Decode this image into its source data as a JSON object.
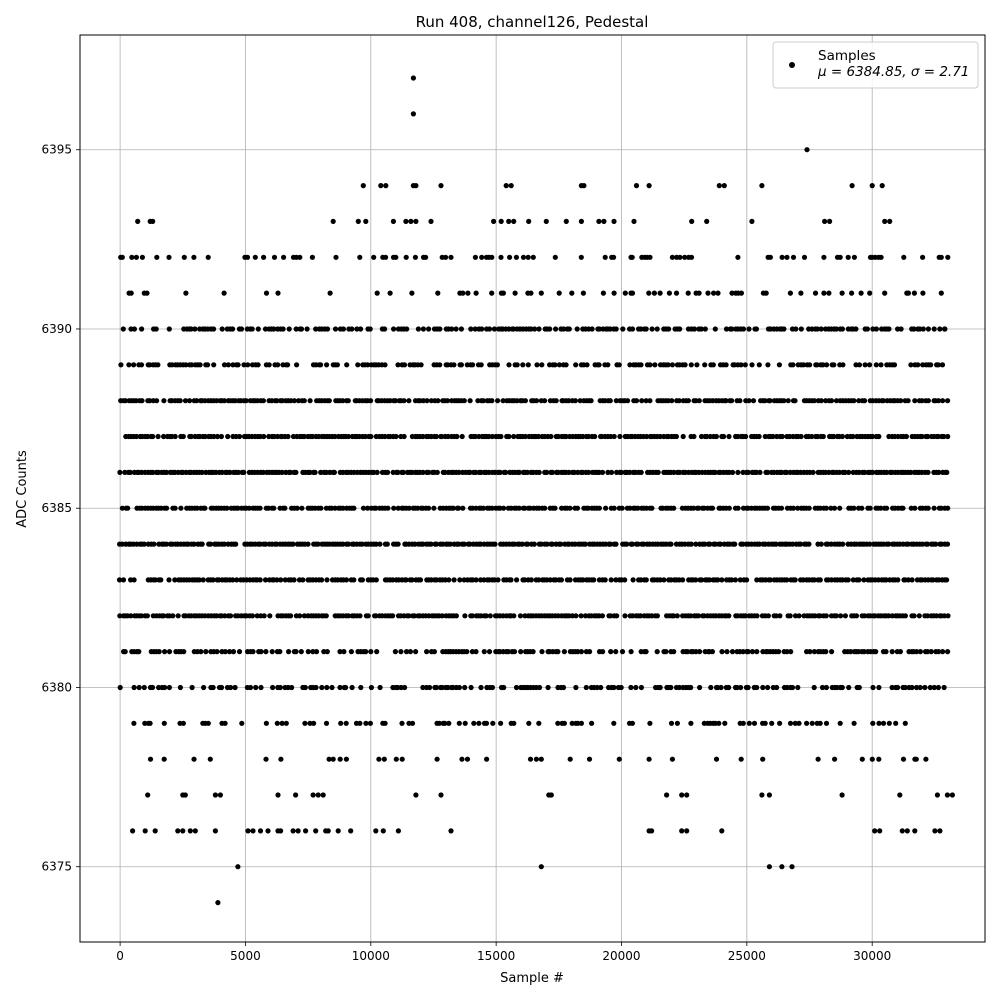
{
  "chart_data": {
    "type": "scatter",
    "title": "Run 408, channel126, Pedestal",
    "xlabel": "Sample #",
    "ylabel": "ADC Counts",
    "xlim": [
      -1600,
      34500
    ],
    "ylim": [
      6372.9,
      6398.2
    ],
    "xticks": [
      0,
      5000,
      10000,
      15000,
      20000,
      25000,
      30000
    ],
    "yticks": [
      6375,
      6380,
      6385,
      6390,
      6395
    ],
    "grid": true,
    "legend_position": "top-right",
    "marker_color": "#000000",
    "n_samples_end": 33000,
    "series": [
      {
        "name": "Samples",
        "legend_line2": "μ = 6384.85, σ = 2.71",
        "mean": 6384.85,
        "sigma": 2.71
      }
    ],
    "level_density": {
      "6379": 0.35,
      "6380": 0.55,
      "6381": 0.6,
      "6382": 0.85,
      "6383": 0.8,
      "6384": 0.95,
      "6385": 0.8,
      "6386": 0.95,
      "6387": 0.85,
      "6388": 0.8,
      "6389": 0.6,
      "6390": 0.6,
      "6391": 0.2,
      "6392": 0.28,
      "6378": 0.12
    },
    "sparse_points": [
      [
        3900,
        6374
      ],
      [
        4700,
        6375
      ],
      [
        16800,
        6375
      ],
      [
        25900,
        6375
      ],
      [
        26400,
        6375
      ],
      [
        26800,
        6375
      ],
      [
        500,
        6376
      ],
      [
        1000,
        6376
      ],
      [
        1400,
        6376
      ],
      [
        2300,
        6376
      ],
      [
        2500,
        6376
      ],
      [
        2800,
        6376
      ],
      [
        3000,
        6376
      ],
      [
        3800,
        6376
      ],
      [
        5100,
        6376
      ],
      [
        5300,
        6376
      ],
      [
        5600,
        6376
      ],
      [
        5900,
        6376
      ],
      [
        6300,
        6376
      ],
      [
        6400,
        6376
      ],
      [
        6900,
        6376
      ],
      [
        7100,
        6376
      ],
      [
        7400,
        6376
      ],
      [
        7800,
        6376
      ],
      [
        8200,
        6376
      ],
      [
        8300,
        6376
      ],
      [
        8700,
        6376
      ],
      [
        9200,
        6376
      ],
      [
        10200,
        6376
      ],
      [
        10500,
        6376
      ],
      [
        11100,
        6376
      ],
      [
        13200,
        6376
      ],
      [
        21100,
        6376
      ],
      [
        21200,
        6376
      ],
      [
        22400,
        6376
      ],
      [
        22600,
        6376
      ],
      [
        24000,
        6376
      ],
      [
        30100,
        6376
      ],
      [
        30300,
        6376
      ],
      [
        31200,
        6376
      ],
      [
        31400,
        6376
      ],
      [
        31700,
        6376
      ],
      [
        32500,
        6376
      ],
      [
        32700,
        6376
      ],
      [
        1100,
        6377
      ],
      [
        2500,
        6377
      ],
      [
        2600,
        6377
      ],
      [
        3800,
        6377
      ],
      [
        4000,
        6377
      ],
      [
        6300,
        6377
      ],
      [
        7000,
        6377
      ],
      [
        7700,
        6377
      ],
      [
        7900,
        6377
      ],
      [
        8100,
        6377
      ],
      [
        11800,
        6377
      ],
      [
        12800,
        6377
      ],
      [
        17100,
        6377
      ],
      [
        17200,
        6377
      ],
      [
        21800,
        6377
      ],
      [
        22400,
        6377
      ],
      [
        22600,
        6377
      ],
      [
        25600,
        6377
      ],
      [
        25900,
        6377
      ],
      [
        28800,
        6377
      ],
      [
        31100,
        6377
      ],
      [
        32600,
        6377
      ],
      [
        33000,
        6377
      ],
      [
        33200,
        6377
      ],
      [
        700,
        6393
      ],
      [
        1200,
        6393
      ],
      [
        1300,
        6393
      ],
      [
        8500,
        6393
      ],
      [
        9500,
        6393
      ],
      [
        9800,
        6393
      ],
      [
        10900,
        6393
      ],
      [
        11400,
        6393
      ],
      [
        11600,
        6393
      ],
      [
        11800,
        6393
      ],
      [
        12400,
        6393
      ],
      [
        14900,
        6393
      ],
      [
        15200,
        6393
      ],
      [
        15500,
        6393
      ],
      [
        15700,
        6393
      ],
      [
        16300,
        6393
      ],
      [
        17000,
        6393
      ],
      [
        17800,
        6393
      ],
      [
        18400,
        6393
      ],
      [
        19100,
        6393
      ],
      [
        19300,
        6393
      ],
      [
        19700,
        6393
      ],
      [
        20500,
        6393
      ],
      [
        22800,
        6393
      ],
      [
        23400,
        6393
      ],
      [
        25200,
        6393
      ],
      [
        28100,
        6393
      ],
      [
        28300,
        6393
      ],
      [
        30500,
        6393
      ],
      [
        30700,
        6393
      ],
      [
        9700,
        6394
      ],
      [
        10400,
        6394
      ],
      [
        10600,
        6394
      ],
      [
        11700,
        6394
      ],
      [
        11800,
        6394
      ],
      [
        12800,
        6394
      ],
      [
        15400,
        6394
      ],
      [
        15600,
        6394
      ],
      [
        18400,
        6394
      ],
      [
        18500,
        6394
      ],
      [
        20600,
        6394
      ],
      [
        21100,
        6394
      ],
      [
        23900,
        6394
      ],
      [
        24100,
        6394
      ],
      [
        25600,
        6394
      ],
      [
        29200,
        6394
      ],
      [
        30000,
        6394
      ],
      [
        30400,
        6394
      ],
      [
        27400,
        6395
      ],
      [
        11700,
        6396
      ],
      [
        11700,
        6397
      ],
      [
        32900,
        6390
      ]
    ]
  }
}
